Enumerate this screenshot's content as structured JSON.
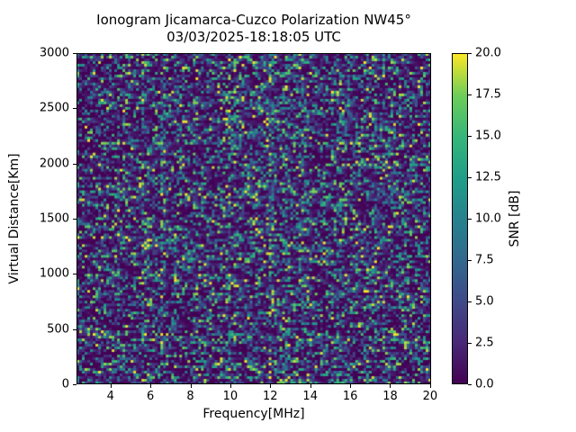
{
  "figure": {
    "title": "Ionogram Jicamarca-Cuzco Polarization NW45°",
    "subtitle": "03/03/2025-18:18:05 UTC"
  },
  "chart_data": {
    "type": "heatmap",
    "title": "Ionogram Jicamarca-Cuzco Polarization NW45°",
    "subtitle": "03/03/2025-18:18:05 UTC",
    "xlabel": "Frequency[MHz]",
    "ylabel": "Virtual Distance[Km]",
    "x_range": [
      2.3,
      20.05
    ],
    "y_range": [
      0,
      3000
    ],
    "x_ticks": [
      4,
      6,
      8,
      10,
      12,
      14,
      16,
      18,
      20
    ],
    "y_ticks": [
      0,
      500,
      1000,
      1500,
      2000,
      2500,
      3000
    ],
    "grid": false,
    "colorbar": {
      "label": "SNR [dB]",
      "range": [
        0,
        20
      ],
      "tick_values": [
        0,
        2.5,
        5,
        7.5,
        10,
        12.5,
        15,
        17.5,
        20
      ],
      "ticks": [
        "0.0",
        "2.5",
        "5.0",
        "7.5",
        "10.0",
        "12.5",
        "15.0",
        "17.5",
        "20.0"
      ],
      "colormap": "viridis",
      "stops": [
        "#440154",
        "#482878",
        "#3e4a89",
        "#31688e",
        "#26828e",
        "#1f9e89",
        "#35b779",
        "#6ece58",
        "#fde725"
      ]
    },
    "values_description": "Dense random SNR noise over the full 2.3-20 MHz / 0-3000 km panel: mostly 0-4 dB (dark purple) with vertical streak columns of 4-10 dB (blue/teal) and sparse 12-20 dB speckles (green/yellow); speckle activity slightly enhanced between roughly 10 and 14 MHz.",
    "noise_model": {
      "cols": 131,
      "rows": 123,
      "seed": 20250303,
      "base_activity": 0.18,
      "activity_spread": 0.3,
      "streak_probability": 0.17,
      "streak_boost": 0.27,
      "band_boost_mhz": [
        9.3,
        14.3
      ],
      "band_boost": 0.14,
      "upper_band_boost": 0.05,
      "gamma_max": 5.6,
      "gamma_slope": 4.4,
      "hot_spot_base_probability": 0.006,
      "hot_spot_activity_factor": 0.018
    }
  }
}
